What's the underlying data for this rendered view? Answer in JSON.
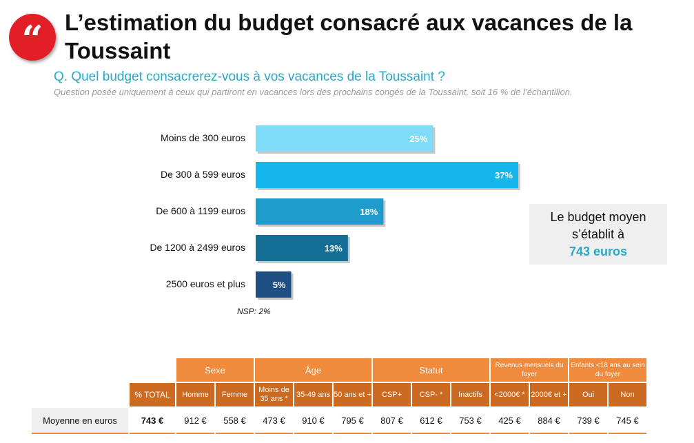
{
  "header": {
    "logo_glyph": "“",
    "title": "L’estimation du budget consacré aux vacances de la Toussaint",
    "question": "Q. Quel budget consacrerez-vous à vos vacances de la Toussaint ?",
    "note": "Question posée uniquement à ceux qui partiront en vacances lors des prochains congés de la Toussaint, soit 16 % de l’échantillon."
  },
  "chart_data": {
    "type": "bar",
    "orientation": "horizontal",
    "categories": [
      "Moins de 300 euros",
      "De 300 à 599 euros",
      "De 600 à 1199 euros",
      "De 1200 à 2499 euros",
      "2500 euros et plus"
    ],
    "values": [
      25,
      37,
      18,
      13,
      5
    ],
    "value_labels": [
      "25%",
      "37%",
      "18%",
      "13%",
      "5%"
    ],
    "colors": [
      "#7fdcf8",
      "#14b6ec",
      "#1d9ccc",
      "#146e96",
      "#1f4f85"
    ],
    "unit": "%",
    "xlim": [
      0,
      37
    ],
    "footnote": "NSP: 2%"
  },
  "average_box": {
    "line1": "Le budget moyen",
    "line2": "s’établit à",
    "value": "743 euros"
  },
  "table": {
    "groups": [
      {
        "label": "Sexe",
        "span": 2
      },
      {
        "label": "Âge",
        "span": 3
      },
      {
        "label": "Statut",
        "span": 3
      },
      {
        "label": "Revenus mensuels du foyer",
        "span": 2
      },
      {
        "label": "Enfants <18 ans au sein du foyer",
        "span": 2
      }
    ],
    "subheaders": {
      "total": "% TOTAL",
      "homme": "Homme",
      "femme": "Femme",
      "moins35": "Moins de 35 ans *",
      "age3549": "35-49 ans",
      "age50": "50 ans et +",
      "cspplus": "CSP+",
      "cspmoins": "CSP- *",
      "inactifs": "Inactifs",
      "rev_low": "<2000€ *",
      "rev_high": "2000€ et +",
      "oui": "Oui",
      "non": "Non"
    },
    "row_label": "Moyenne en euros",
    "values": {
      "total": "743 €",
      "homme": "912 €",
      "femme": "558 €",
      "moins35": "473 €",
      "age3549": "910 €",
      "age50": "795 €",
      "cspplus": "807 €",
      "cspmoins": "612 €",
      "inactifs": "753 €",
      "rev_low": "425 €",
      "rev_high": "884 €",
      "oui": "739 €",
      "non": "745 €"
    }
  }
}
